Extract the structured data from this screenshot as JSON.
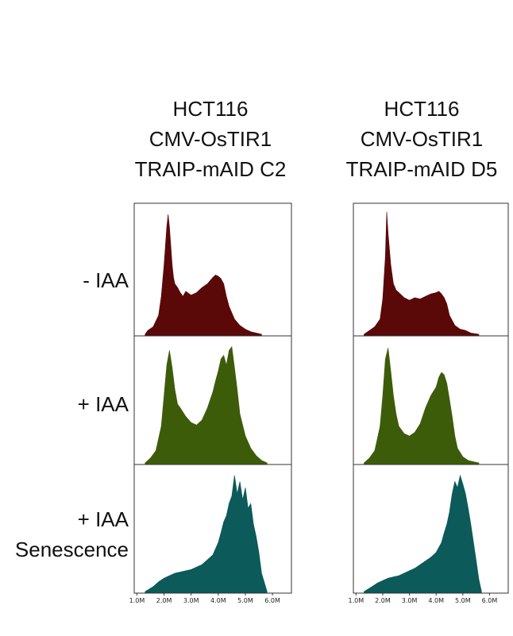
{
  "column_titles": [
    {
      "lines": [
        "HCT116",
        "CMV-OsTIR1",
        "TRAIP-mAID C2"
      ]
    },
    {
      "lines": [
        "HCT116",
        "CMV-OsTIR1",
        "TRAIP-mAID D5"
      ]
    }
  ],
  "row_labels": [
    {
      "lines": [
        "- IAA"
      ]
    },
    {
      "lines": [
        "+ IAA"
      ]
    },
    {
      "lines": [
        "+ IAA",
        "Senescence"
      ]
    }
  ],
  "colors": {
    "minus_iaa": "#5a0808",
    "plus_iaa": "#3c5c0a",
    "senescence": "#0c5a5a"
  },
  "chart_data": {
    "type": "area",
    "xlabel": "",
    "ylabel": "",
    "x_ticks": [
      "1.0M",
      "2.0M",
      "3.0M",
      "4.0M",
      "5.0M",
      "6.0M"
    ],
    "xlim": [
      0.9,
      6.7
    ],
    "ylim": [
      0,
      1
    ],
    "panels": [
      {
        "column": "TRAIP-mAID C2",
        "row": "- IAA",
        "color": "#5a0808",
        "x": [
          1.3,
          1.4,
          1.6,
          1.8,
          1.9,
          2.0,
          2.1,
          2.15,
          2.2,
          2.25,
          2.3,
          2.35,
          2.4,
          2.5,
          2.6,
          2.7,
          2.8,
          3.0,
          3.2,
          3.4,
          3.6,
          3.8,
          3.9,
          4.0,
          4.1,
          4.2,
          4.3,
          4.4,
          4.6,
          4.8,
          5.0,
          5.2,
          5.4,
          5.6
        ],
        "y": [
          0,
          0.03,
          0.06,
          0.15,
          0.3,
          0.55,
          0.85,
          0.95,
          0.85,
          0.7,
          0.55,
          0.45,
          0.4,
          0.37,
          0.33,
          0.3,
          0.34,
          0.31,
          0.33,
          0.37,
          0.4,
          0.45,
          0.47,
          0.46,
          0.44,
          0.4,
          0.3,
          0.22,
          0.12,
          0.07,
          0.04,
          0.02,
          0.01,
          0
        ]
      },
      {
        "column": "TRAIP-mAID C2",
        "row": "+ IAA",
        "color": "#3c5c0a",
        "x": [
          1.3,
          1.5,
          1.7,
          1.9,
          2.0,
          2.1,
          2.2,
          2.3,
          2.4,
          2.5,
          2.6,
          2.8,
          3.0,
          3.2,
          3.4,
          3.6,
          3.8,
          3.9,
          4.0,
          4.1,
          4.2,
          4.3,
          4.4,
          4.5,
          4.6,
          4.7,
          4.8,
          5.0,
          5.2,
          5.4,
          5.6,
          5.8
        ],
        "y": [
          0,
          0.04,
          0.1,
          0.3,
          0.55,
          0.8,
          0.92,
          0.78,
          0.6,
          0.48,
          0.45,
          0.38,
          0.33,
          0.31,
          0.35,
          0.45,
          0.58,
          0.67,
          0.75,
          0.85,
          0.88,
          0.8,
          0.92,
          0.95,
          0.78,
          0.6,
          0.4,
          0.22,
          0.12,
          0.06,
          0.02,
          0
        ]
      },
      {
        "column": "TRAIP-mAID C2",
        "row": "+ IAA Senescence",
        "color": "#0c5a5a",
        "x": [
          1.3,
          1.6,
          1.8,
          2.0,
          2.2,
          2.4,
          2.6,
          2.8,
          3.0,
          3.2,
          3.4,
          3.6,
          3.8,
          4.0,
          4.1,
          4.2,
          4.3,
          4.4,
          4.5,
          4.6,
          4.7,
          4.8,
          4.9,
          5.0,
          5.1,
          5.2,
          5.3,
          5.4,
          5.5,
          5.6,
          5.8
        ],
        "y": [
          0,
          0.04,
          0.08,
          0.11,
          0.13,
          0.15,
          0.16,
          0.17,
          0.18,
          0.2,
          0.22,
          0.26,
          0.3,
          0.4,
          0.48,
          0.57,
          0.62,
          0.72,
          0.78,
          0.95,
          0.8,
          0.9,
          0.75,
          0.85,
          0.68,
          0.72,
          0.55,
          0.45,
          0.32,
          0.15,
          0
        ]
      },
      {
        "column": "TRAIP-mAID D5",
        "row": "- IAA",
        "color": "#5a0808",
        "x": [
          1.3,
          1.5,
          1.7,
          1.9,
          2.0,
          2.1,
          2.15,
          2.2,
          2.3,
          2.4,
          2.5,
          2.6,
          2.8,
          3.0,
          3.2,
          3.4,
          3.6,
          3.8,
          4.0,
          4.1,
          4.2,
          4.3,
          4.4,
          4.5,
          4.7,
          4.9,
          5.1,
          5.3,
          5.6
        ],
        "y": [
          0,
          0.03,
          0.06,
          0.12,
          0.28,
          0.62,
          0.97,
          0.8,
          0.55,
          0.4,
          0.35,
          0.33,
          0.29,
          0.27,
          0.29,
          0.28,
          0.3,
          0.32,
          0.33,
          0.34,
          0.32,
          0.29,
          0.24,
          0.15,
          0.07,
          0.04,
          0.03,
          0.01,
          0
        ]
      },
      {
        "column": "TRAIP-mAID D5",
        "row": "+ IAA",
        "color": "#3c5c0a",
        "x": [
          1.3,
          1.5,
          1.7,
          1.9,
          2.0,
          2.1,
          2.2,
          2.3,
          2.4,
          2.5,
          2.6,
          2.8,
          3.0,
          3.2,
          3.4,
          3.6,
          3.8,
          4.0,
          4.1,
          4.2,
          4.3,
          4.4,
          4.5,
          4.6,
          4.7,
          4.8,
          5.0,
          5.2,
          5.4,
          5.6
        ],
        "y": [
          0,
          0.04,
          0.1,
          0.3,
          0.55,
          0.85,
          0.94,
          0.75,
          0.55,
          0.4,
          0.3,
          0.24,
          0.22,
          0.25,
          0.32,
          0.45,
          0.55,
          0.62,
          0.7,
          0.74,
          0.72,
          0.65,
          0.52,
          0.38,
          0.22,
          0.12,
          0.05,
          0.02,
          0.01,
          0
        ]
      },
      {
        "column": "TRAIP-mAID D5",
        "row": "+ IAA Senescence",
        "color": "#0c5a5a",
        "x": [
          1.3,
          1.6,
          1.8,
          2.0,
          2.2,
          2.4,
          2.6,
          2.8,
          3.0,
          3.2,
          3.4,
          3.6,
          3.8,
          4.0,
          4.2,
          4.3,
          4.4,
          4.5,
          4.6,
          4.7,
          4.8,
          4.9,
          5.0,
          5.1,
          5.2,
          5.3,
          5.4,
          5.5,
          5.6,
          5.7
        ],
        "y": [
          0,
          0.04,
          0.07,
          0.09,
          0.11,
          0.12,
          0.13,
          0.15,
          0.17,
          0.19,
          0.22,
          0.25,
          0.28,
          0.32,
          0.4,
          0.48,
          0.55,
          0.65,
          0.8,
          0.9,
          0.85,
          0.95,
          0.88,
          0.8,
          0.68,
          0.55,
          0.4,
          0.25,
          0.1,
          0
        ]
      }
    ]
  }
}
